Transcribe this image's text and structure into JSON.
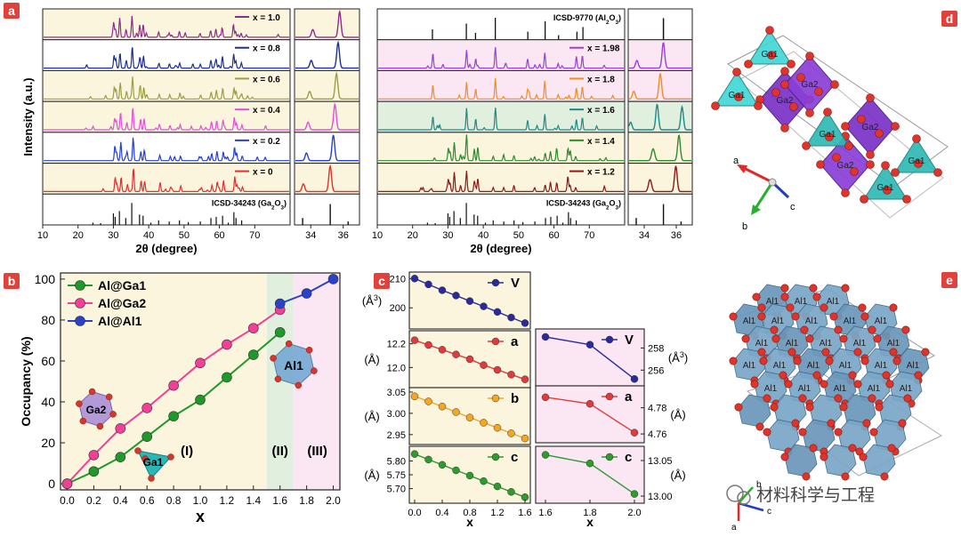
{
  "panel_letters": {
    "a": "a",
    "b": "b",
    "c": "c",
    "d": "d",
    "e": "e"
  },
  "colors": {
    "badge": "#e0413b",
    "cream": "#fbf5de",
    "pink": "#fbe6f3",
    "mint": "#e1efdf",
    "white": "#ffffff"
  },
  "chart_data": [
    {
      "id": "xrd-left",
      "type": "line",
      "title": "",
      "ylabel": "Intensity (a.u.)",
      "xlabel": "2θ (degree)",
      "xlim_main": [
        10,
        80
      ],
      "xticks_main": [
        "10",
        "20",
        "30",
        "40",
        "50",
        "60",
        "70"
      ],
      "xlim_zoom": [
        33,
        37
      ],
      "xticks_zoom": [
        "34",
        "36"
      ],
      "traces": [
        {
          "label": "x = 1.0",
          "color": "#8f2b8e",
          "bg": "cream",
          "peak_zoom": 35.8
        },
        {
          "label": "x = 0.8",
          "color": "#1c2f8f",
          "bg": "white",
          "peak_zoom": 35.7
        },
        {
          "label": "x = 0.6",
          "color": "#9aa048",
          "bg": "cream",
          "peak_zoom": 35.6
        },
        {
          "label": "x = 0.4",
          "color": "#e44ed9",
          "bg": "cream",
          "peak_zoom": 35.5
        },
        {
          "label": "x = 0.2",
          "color": "#2640d6",
          "bg": "white",
          "peak_zoom": 35.4
        },
        {
          "label": "x = 0",
          "color": "#e03030",
          "bg": "cream",
          "peak_zoom": 35.2
        }
      ],
      "reference": {
        "label": "ICSD-34243 (Ga2O3)",
        "formula_base": "Ga",
        "formula_sub1": "2",
        "formula_mid": "O",
        "formula_sub2": "3",
        "formula_prefix": "ICSD-34243 ("
      }
    },
    {
      "id": "xrd-right",
      "type": "line",
      "xlabel": "2θ (degree)",
      "xlim_main": [
        10,
        80
      ],
      "xticks_main": [
        "10",
        "20",
        "30",
        "40",
        "50",
        "60",
        "70"
      ],
      "xlim_zoom": [
        33,
        37
      ],
      "xticks_zoom": [
        "34",
        "36"
      ],
      "reference_top": {
        "formula_prefix": "ICSD-9770 (",
        "formula_base": "Al",
        "formula_sub1": "2",
        "formula_mid": "O",
        "formula_sub2": "3"
      },
      "traces": [
        {
          "label": "x = 1.98",
          "color": "#9b3fd6",
          "bg": "pink",
          "peak_zoom": 35.2
        },
        {
          "label": "x = 1.8",
          "color": "#ef8f22",
          "bg": "pink",
          "peak_zoom": 35.0
        },
        {
          "label": "x = 1.6",
          "color": "#1d8a86",
          "bg": "mint",
          "peak_zoom": 34.8
        },
        {
          "label": "x = 1.4",
          "color": "#2e8b2e",
          "bg": "cream",
          "peak_zoom": 36.2
        },
        {
          "label": "x = 1.2",
          "color": "#8b1a1a",
          "bg": "cream",
          "peak_zoom": 36.0
        }
      ],
      "reference": {
        "formula_prefix": "ICSD-34243 (",
        "formula_base": "Ga",
        "formula_sub1": "2",
        "formula_mid": "O",
        "formula_sub2": "3"
      }
    },
    {
      "id": "occupancy",
      "type": "line",
      "xlabel": "x",
      "ylabel": "Occupancy (%)",
      "xlim": [
        -0.05,
        2.05
      ],
      "ylim": [
        -3,
        103
      ],
      "xticks": [
        "0.0",
        "0.2",
        "0.4",
        "0.6",
        "0.8",
        "1.0",
        "1.2",
        "1.4",
        "1.6",
        "1.8",
        "2.0"
      ],
      "yticks": [
        "0",
        "20",
        "40",
        "60",
        "80",
        "100"
      ],
      "regions": [
        {
          "label": "(I)",
          "from": -0.05,
          "to": 1.5,
          "color": "cream"
        },
        {
          "label": "(II)",
          "from": 1.5,
          "to": 1.7,
          "color": "mint"
        },
        {
          "label": "(III)",
          "from": 1.7,
          "to": 2.05,
          "color": "pink"
        }
      ],
      "series": [
        {
          "name": "Al@Ga1",
          "color": "#1f9a2a",
          "x": [
            0,
            0.2,
            0.4,
            0.6,
            0.8,
            1.0,
            1.2,
            1.4,
            1.6
          ],
          "y": [
            0,
            6,
            13,
            23,
            33,
            41,
            52,
            63,
            74
          ]
        },
        {
          "name": "Al@Ga2",
          "color": "#f23f97",
          "x": [
            0,
            0.2,
            0.4,
            0.6,
            0.8,
            1.0,
            1.2,
            1.4,
            1.6
          ],
          "y": [
            0,
            14,
            27,
            37,
            48,
            59,
            68,
            76,
            85
          ]
        },
        {
          "name": "Al@Al1",
          "color": "#2a41c9",
          "x": [
            1.6,
            1.8,
            2.0
          ],
          "y": [
            88,
            93,
            100
          ]
        }
      ],
      "annotations": {
        "ga2": "Ga2",
        "ga1": "Ga1",
        "al1": "Al1"
      }
    },
    {
      "id": "lattice-left",
      "type": "line",
      "xlabel": "x",
      "xlim": [
        0,
        1.6
      ],
      "xticks": [
        "0.0",
        "0.4",
        "0.8",
        "1.2",
        "1.6"
      ],
      "x_values": [
        0,
        0.2,
        0.4,
        0.6,
        0.8,
        1.0,
        1.2,
        1.4,
        1.6
      ],
      "rows": [
        {
          "name": "V",
          "unit_prefix": "(Å",
          "unit_sup": "3",
          "unit_suffix": ")",
          "color": "#2a2a9c",
          "ylim": [
            194,
            211
          ],
          "yticks": [
            "200",
            "210"
          ],
          "values": [
            210,
            208,
            206,
            204.2,
            202.3,
            200.5,
            198.6,
            196.7,
            194.8
          ]
        },
        {
          "name": "a",
          "unit_prefix": "(Å",
          "unit_sup": "",
          "unit_suffix": ")",
          "color": "#e23a3a",
          "ylim": [
            11.86,
            12.28
          ],
          "yticks": [
            "12.2",
            "12.0"
          ],
          "values": [
            12.23,
            12.19,
            12.15,
            12.11,
            12.07,
            12.02,
            11.98,
            11.94,
            11.9
          ]
        },
        {
          "name": "b",
          "unit_prefix": "(Å",
          "unit_sup": "",
          "unit_suffix": ")",
          "color": "#f5a623",
          "ylim": [
            2.935,
            3.052
          ],
          "yticks": [
            "3.05",
            "3.00",
            "2.95"
          ],
          "values": [
            3.04,
            3.028,
            3.016,
            3.003,
            2.99,
            2.978,
            2.966,
            2.953,
            2.941
          ]
        },
        {
          "name": "c",
          "unit_prefix": "(Å",
          "unit_sup": "",
          "unit_suffix": ")",
          "color": "#2e9b2e",
          "ylim": [
            5.66,
            5.84
          ],
          "yticks": [
            "5.80",
            "5.75",
            "5.70"
          ],
          "values": [
            5.825,
            5.805,
            5.786,
            5.766,
            5.747,
            5.727,
            5.708,
            5.688,
            5.669
          ]
        }
      ]
    },
    {
      "id": "lattice-right",
      "type": "line",
      "xlabel": "x",
      "xlim": [
        1.58,
        2.02
      ],
      "xticks": [
        "1.6",
        "1.8",
        "2.0"
      ],
      "x_values": [
        1.6,
        1.8,
        2.0
      ],
      "rows": [
        {
          "name": "V",
          "unit_prefix": "(Å",
          "unit_sup": "3",
          "unit_suffix": ")",
          "color": "#2a2a9c",
          "ylim": [
            254.9,
            259.4
          ],
          "yticks": [
            "258",
            "256"
          ],
          "values": [
            259.0,
            258.3,
            255.2
          ]
        },
        {
          "name": "a",
          "unit_prefix": "(Å",
          "unit_sup": "",
          "unit_suffix": ")",
          "color": "#e23a3a",
          "ylim": [
            4.756,
            4.794
          ],
          "yticks": [
            "4.78",
            "4.76"
          ],
          "values": [
            4.788,
            4.783,
            4.761
          ]
        },
        {
          "name": "c",
          "unit_prefix": "(Å",
          "unit_sup": "",
          "unit_suffix": ")",
          "color": "#2e9b2e",
          "ylim": [
            12.995,
            13.065
          ],
          "yticks": [
            "13.05",
            "13.00"
          ],
          "values": [
            13.058,
            13.046,
            13.003
          ]
        }
      ]
    }
  ],
  "structures": {
    "d": {
      "labels": [
        "Ga1",
        "Ga1",
        "Ga2",
        "Ga2",
        "Ga1",
        "Ga2",
        "Ga2",
        "Ga1",
        "Ga1"
      ],
      "axes": {
        "a": "a",
        "b": "b",
        "c": "c"
      }
    },
    "e": {
      "labels": [
        "Al1",
        "Al1",
        "Al1",
        "Al1",
        "Al1",
        "Al1",
        "Al1",
        "Al1",
        "Al1",
        "Al1",
        "Al1",
        "Al1",
        "Al1",
        "Al1",
        "Al1",
        "Al1",
        "Al1",
        "Al1",
        "Al1",
        "Al1",
        "Al1",
        "Al1",
        "Al1",
        "Al1"
      ],
      "axes": {
        "a": "a",
        "b": "b",
        "c": "c"
      }
    }
  },
  "watermark": {
    "text": "材料科学与工程"
  }
}
